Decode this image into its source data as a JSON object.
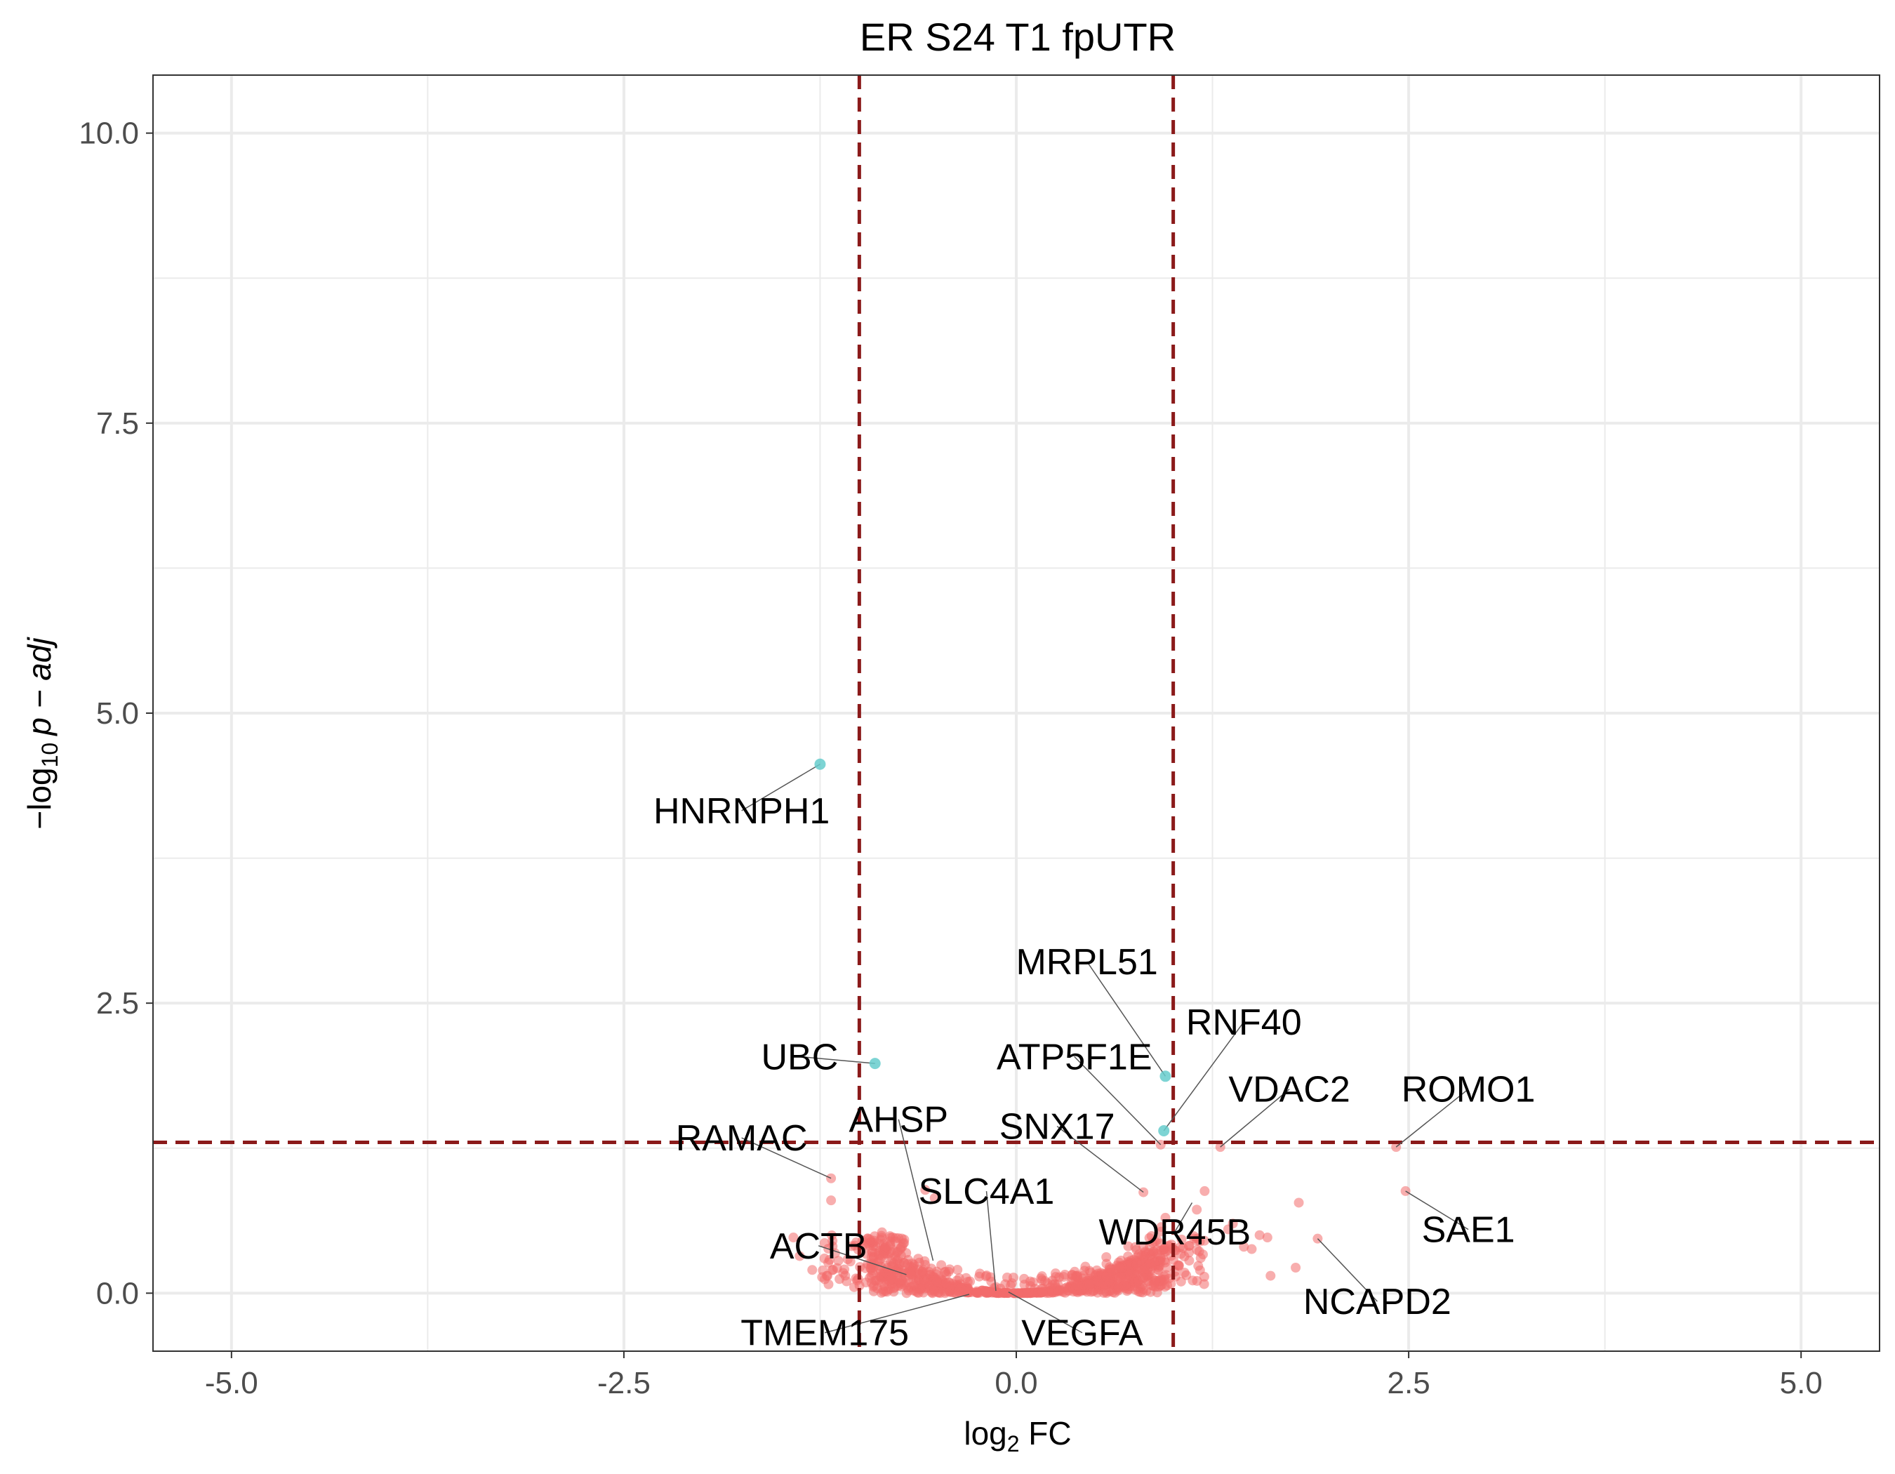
{
  "chart_data": {
    "type": "scatter",
    "title": "ER S24 T1 fpUTR",
    "xlabel": {
      "main": "log",
      "sub": "2",
      "rest": " FC"
    },
    "ylabel": {
      "prefix": "−log",
      "sub": "10",
      "rest": "p − adj"
    },
    "xlim": [
      -5.5,
      5.5
    ],
    "ylim": [
      -0.5,
      10.5
    ],
    "x_ticks": [
      -5.0,
      -2.5,
      0.0,
      2.5,
      5.0
    ],
    "x_tick_labels": [
      "-5.0",
      "-2.5",
      "0.0",
      "2.5",
      "5.0"
    ],
    "y_ticks": [
      0.0,
      2.5,
      5.0,
      7.5,
      10.0
    ],
    "y_tick_labels": [
      "0.0",
      "2.5",
      "5.0",
      "7.5",
      "10.0"
    ],
    "grid": true,
    "thresholds": {
      "fc": [
        -1.0,
        1.0
      ],
      "p": 1.3
    },
    "colors": {
      "not_significant": "#f26b6b",
      "significant": "#66cccc",
      "threshold_line": "#8b1a1a",
      "grid": "#ebebeb",
      "panel_border": "#333333"
    },
    "significant_points": [
      {
        "x": -1.25,
        "y": 4.56
      },
      {
        "x": -0.9,
        "y": 1.98
      },
      {
        "x": 0.95,
        "y": 1.87
      },
      {
        "x": 0.94,
        "y": 1.4
      }
    ],
    "labeled_points": [
      {
        "x": -1.18,
        "y": 0.99
      },
      {
        "x": 1.3,
        "y": 1.26
      },
      {
        "x": 2.42,
        "y": 1.26
      },
      {
        "x": 0.92,
        "y": 1.28
      },
      {
        "x": 2.48,
        "y": 0.88
      },
      {
        "x": 1.92,
        "y": 0.47
      },
      {
        "x": 0.81,
        "y": 0.87
      },
      {
        "x": 0.95,
        "y": 0.65
      }
    ],
    "labels": [
      {
        "text": "HNRNPH1",
        "point": [
          -1.25,
          4.56
        ],
        "pos": [
          -1.75,
          4.05
        ]
      },
      {
        "text": "UBC",
        "point": [
          -0.9,
          1.98
        ],
        "pos": [
          -1.38,
          1.93
        ]
      },
      {
        "text": "MRPL51",
        "point": [
          0.95,
          1.87
        ],
        "pos": [
          0.45,
          2.75
        ]
      },
      {
        "text": "RNF40",
        "point": [
          0.94,
          1.4
        ],
        "pos": [
          1.45,
          2.23
        ]
      },
      {
        "text": "ATP5F1E",
        "point": [
          0.92,
          1.28
        ],
        "pos": [
          0.37,
          1.93
        ]
      },
      {
        "text": "VDAC2",
        "point": [
          1.3,
          1.26
        ],
        "pos": [
          1.74,
          1.65
        ]
      },
      {
        "text": "ROMO1",
        "point": [
          2.42,
          1.26
        ],
        "pos": [
          2.88,
          1.65
        ]
      },
      {
        "text": "SNX17",
        "point": [
          0.81,
          0.87
        ],
        "pos": [
          0.26,
          1.33
        ]
      },
      {
        "text": "AHSP",
        "point": [
          -0.53,
          0.28
        ],
        "pos": [
          -0.75,
          1.39
        ]
      },
      {
        "text": "RAMAC",
        "point": [
          -1.18,
          0.99
        ],
        "pos": [
          -1.75,
          1.23
        ]
      },
      {
        "text": "SLC4A1",
        "point": [
          -0.13,
          0.02
        ],
        "pos": [
          -0.19,
          0.77
        ]
      },
      {
        "text": "WDR45B",
        "point": [
          1.12,
          0.78
        ],
        "pos": [
          1.01,
          0.42
        ]
      },
      {
        "text": "SAE1",
        "point": [
          2.48,
          0.88
        ],
        "pos": [
          2.88,
          0.44
        ]
      },
      {
        "text": "ACTB",
        "point": [
          -0.7,
          0.16
        ],
        "pos": [
          -1.26,
          0.3
        ]
      },
      {
        "text": "NCAPD2",
        "point": [
          1.92,
          0.47
        ],
        "pos": [
          2.3,
          -0.18
        ]
      },
      {
        "text": "TMEM175",
        "point": [
          -0.3,
          -0.01
        ],
        "pos": [
          -1.22,
          -0.45
        ]
      },
      {
        "text": "VEGFA",
        "point": [
          -0.05,
          0.01
        ],
        "pos": [
          0.42,
          -0.45
        ]
      }
    ]
  }
}
